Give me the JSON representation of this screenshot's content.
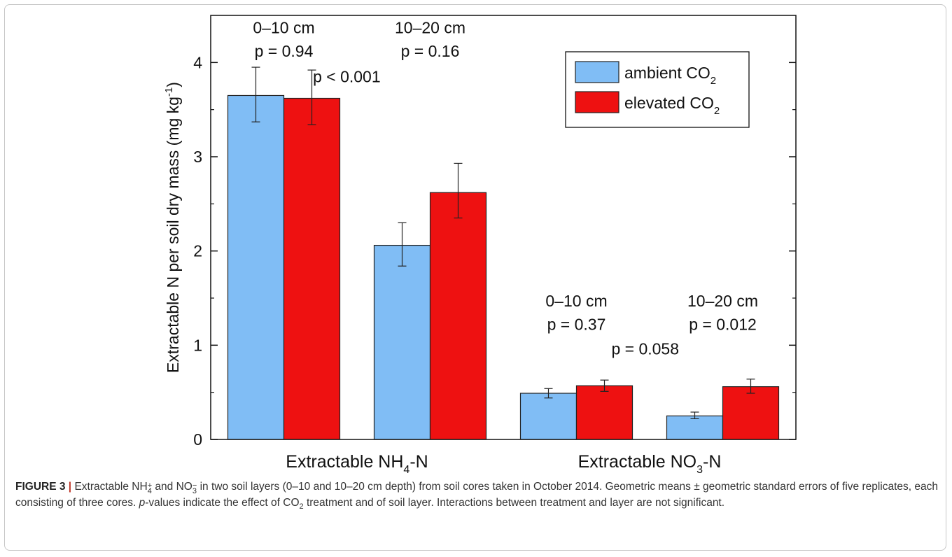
{
  "chart_data": {
    "type": "bar",
    "categories": [
      "Extractable NH₄-N",
      "Extractable NO₃-N"
    ],
    "category_label_parts": [
      {
        "pre": "Extractable NH",
        "sub": "4",
        "post": "-N"
      },
      {
        "pre": "Extractable NO",
        "sub": "3",
        "post": "-N"
      }
    ],
    "groups": [
      {
        "category": "Extractable NH4-N",
        "layer": "0–10 cm",
        "ambient": 3.65,
        "ambient_err": [
          3.37,
          3.95
        ],
        "elevated": 3.62,
        "elevated_err": [
          3.34,
          3.92
        ]
      },
      {
        "category": "Extractable NH4-N",
        "layer": "10–20 cm",
        "ambient": 2.06,
        "ambient_err": [
          1.84,
          2.3
        ],
        "elevated": 2.62,
        "elevated_err": [
          2.35,
          2.93
        ]
      },
      {
        "category": "Extractable NO3-N",
        "layer": "0–10 cm",
        "ambient": 0.49,
        "ambient_err": [
          0.44,
          0.54
        ],
        "elevated": 0.57,
        "elevated_err": [
          0.51,
          0.63
        ]
      },
      {
        "category": "Extractable NO3-N",
        "layer": "10–20 cm",
        "ambient": 0.25,
        "ambient_err": [
          0.22,
          0.29
        ],
        "elevated": 0.56,
        "elevated_err": [
          0.49,
          0.64
        ]
      }
    ],
    "series": [
      {
        "key": "ambient",
        "name": "ambient CO",
        "name_sub": "2",
        "color": "#80bdf5"
      },
      {
        "key": "elevated",
        "name": "elevated CO",
        "name_sub": "2",
        "color": "#ee1111"
      }
    ],
    "ylabel": {
      "pre": "Extractable N per soil dry mass (mg kg",
      "sup": "-1",
      "post": ")"
    },
    "ylim": [
      0,
      4.5
    ],
    "yticks": [
      "0",
      "1",
      "2",
      "3",
      "4"
    ],
    "grid": false,
    "legend_position": "top-right",
    "annotations": [
      {
        "text": "0–10 cm",
        "x": 0.5,
        "y": 4.37
      },
      {
        "text": "p = 0.94",
        "x": 0.5,
        "y": 4.12
      },
      {
        "text": "10–20 cm",
        "x": 1.5,
        "y": 4.37
      },
      {
        "text": "p = 0.16",
        "x": 1.5,
        "y": 4.12
      },
      {
        "text": "p < 0.001",
        "x": 0.93,
        "y": 3.85
      },
      {
        "text": "0–10 cm",
        "x": 2.5,
        "y": 1.47
      },
      {
        "text": "p = 0.37",
        "x": 2.5,
        "y": 1.22
      },
      {
        "text": "10–20 cm",
        "x": 3.5,
        "y": 1.47
      },
      {
        "text": "p = 0.012",
        "x": 3.5,
        "y": 1.22
      },
      {
        "text": "p = 0.058",
        "x": 2.97,
        "y": 0.96
      }
    ]
  },
  "caption": {
    "label": "FIGURE 3",
    "separator": "|",
    "t1": "Extractable NH",
    "t1_sup": "+",
    "t1_sub": "4",
    "t2": " and NO",
    "t2_sup": "−",
    "t2_sub": "3",
    "t3": " in two soil layers (0–10 and 10–20 cm depth) from soil cores taken in October 2014. Geometric means ± geometric standard errors of five replicates, each consisting of three cores. ",
    "t4_italic": "p",
    "t4": "-values indicate the effect of CO",
    "t4_sub": "2",
    "t5": " treatment and of soil layer. Interactions between treatment and layer are not significant."
  }
}
